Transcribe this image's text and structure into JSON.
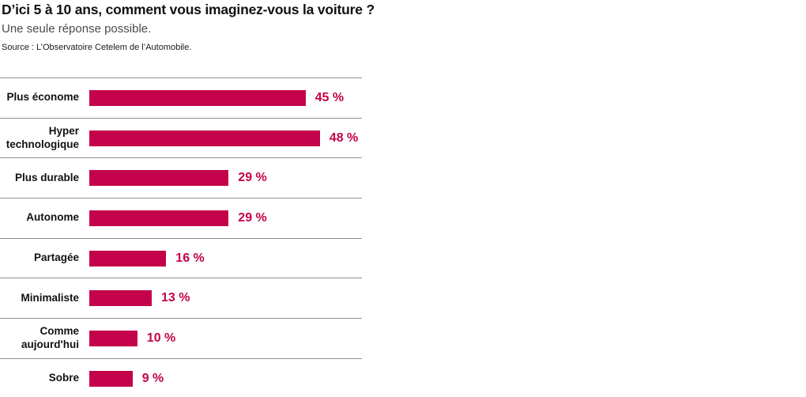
{
  "header": {
    "title": "D’ici 5 à 10 ans, comment vous imaginez-vous la voiture ?",
    "subtitle": "Une seule réponse possible.",
    "source": "Source : L’Observatoire Cetelem de l’Automobile."
  },
  "colors": {
    "bar": "#c3024b",
    "value_text": "#c3024b",
    "divider": "#8f8f8f",
    "title_text": "#111111",
    "subtitle_text": "#4a4a4a"
  },
  "chart_data": {
    "type": "bar",
    "orientation": "horizontal",
    "title": "D’ici 5 à 10 ans, comment vous imaginez-vous la voiture ?",
    "categories": [
      "Plus économe",
      "Hyper technologique",
      "Plus durable",
      "Autonome",
      "Partagée",
      "Minimaliste",
      "Comme aujourd'hui",
      "Sobre"
    ],
    "values": [
      45,
      48,
      29,
      29,
      16,
      13,
      10,
      9
    ],
    "value_labels": [
      "45 %",
      "48 %",
      "29 %",
      "29 %",
      "16 %",
      "13 %",
      "10 %",
      "9 %"
    ],
    "xlabel": "",
    "ylabel": "",
    "xlim": [
      0,
      100
    ],
    "grid": false,
    "legend": false,
    "row_dividers": true
  }
}
